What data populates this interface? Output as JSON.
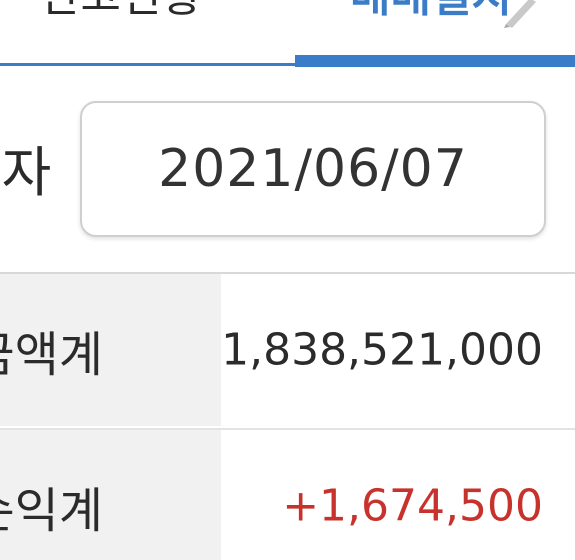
{
  "tabs": {
    "items": [
      {
        "label": "잔고현황"
      },
      {
        "label": "매매일지"
      }
    ],
    "active_index": 1,
    "accent_color": "#3a7cc8"
  },
  "date": {
    "label": "일자",
    "value": "2021/06/07"
  },
  "summary": {
    "rows": [
      {
        "label": "금액계",
        "value": "1,838,521,000",
        "color": "#2b2b2b"
      },
      {
        "label": "손익계",
        "value": "+1,674,500",
        "color": "#c8322c"
      }
    ]
  },
  "icons": {
    "edit": "pen-icon"
  }
}
